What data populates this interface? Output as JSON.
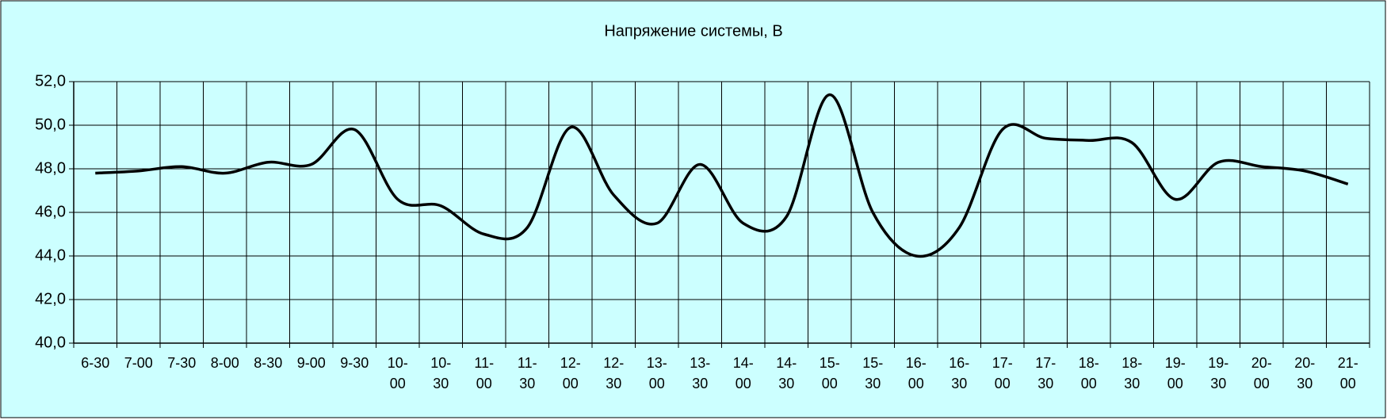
{
  "chart_data": {
    "type": "line",
    "title": "Напряжение системы, В",
    "categories": [
      "6-30",
      "7-00",
      "7-30",
      "8-00",
      "8-30",
      "9-00",
      "9-30",
      "10-00",
      "10-30",
      "11-00",
      "11-30",
      "12-00",
      "12-30",
      "13-00",
      "13-30",
      "14-00",
      "14-30",
      "15-00",
      "15-30",
      "16-00",
      "16-30",
      "17-00",
      "17-30",
      "18-00",
      "18-30",
      "19-00",
      "19-30",
      "20-00",
      "20-30",
      "21-00"
    ],
    "series": [
      {
        "color": "#000000",
        "values": [
          47.8,
          47.9,
          48.1,
          47.8,
          48.3,
          48.2,
          49.8,
          46.6,
          46.3,
          45.0,
          45.3,
          49.9,
          46.8,
          45.5,
          48.2,
          45.5,
          45.8,
          51.4,
          46.0,
          44.0,
          45.3,
          49.8,
          49.4,
          49.3,
          49.2,
          46.6,
          48.3,
          48.1,
          47.9,
          47.3
        ]
      }
    ],
    "ylim": [
      40,
      52
    ],
    "yticks": [
      {
        "value": 40,
        "label": "40,0"
      },
      {
        "value": 42,
        "label": "42,0"
      },
      {
        "value": 44,
        "label": "44,0"
      },
      {
        "value": 46,
        "label": "46,0"
      },
      {
        "value": 48,
        "label": "48,0"
      },
      {
        "value": 50,
        "label": "50,0"
      },
      {
        "value": 52,
        "label": "52,0"
      }
    ],
    "grid": true,
    "background": "#ccffff"
  }
}
